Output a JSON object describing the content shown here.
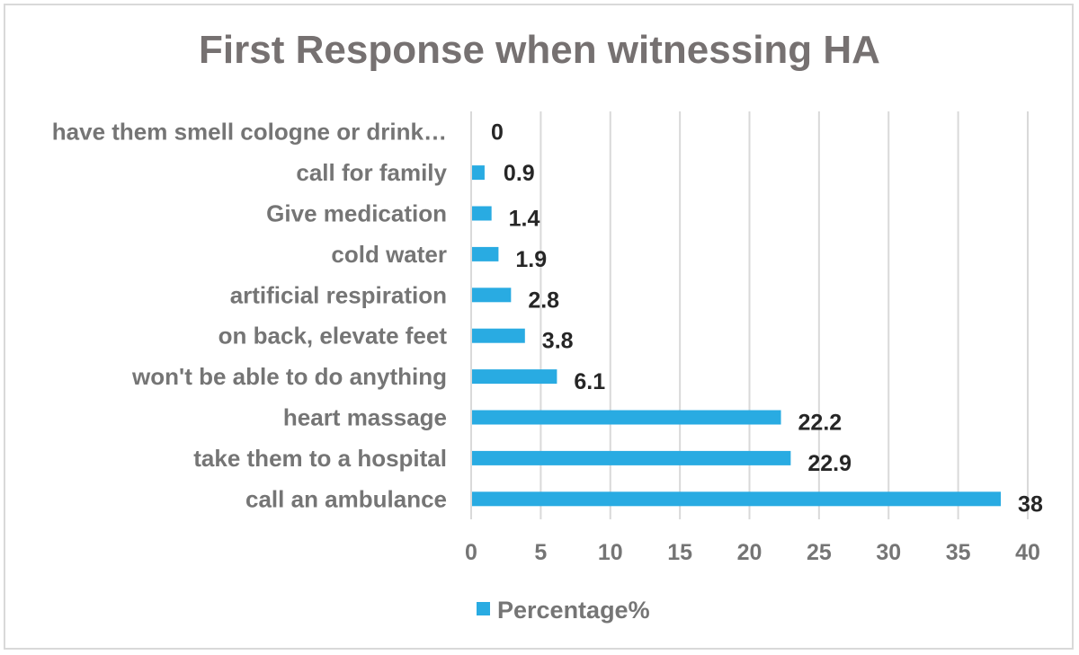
{
  "chart_data": {
    "type": "bar",
    "orientation": "horizontal",
    "title": "First Response when witnessing  HA",
    "categories": [
      "have them smell cologne or drink…",
      "call for family",
      "Give medication",
      "cold water",
      "artificial respiration",
      "on back, elevate feet",
      "won't be able to do anything",
      "heart massage",
      "take them to a hospital",
      "call an ambulance"
    ],
    "series": [
      {
        "name": "Percentage%",
        "values": [
          0,
          0.9,
          1.4,
          1.9,
          2.8,
          3.8,
          6.1,
          22.2,
          22.9,
          38
        ]
      }
    ],
    "xlim": [
      0,
      40
    ],
    "xticks": [
      0,
      5,
      10,
      15,
      20,
      25,
      30,
      35,
      40
    ],
    "grid": true,
    "legend": "bottom",
    "colors": {
      "bar": "#29abe2",
      "grid": "#d9d9d9"
    }
  }
}
